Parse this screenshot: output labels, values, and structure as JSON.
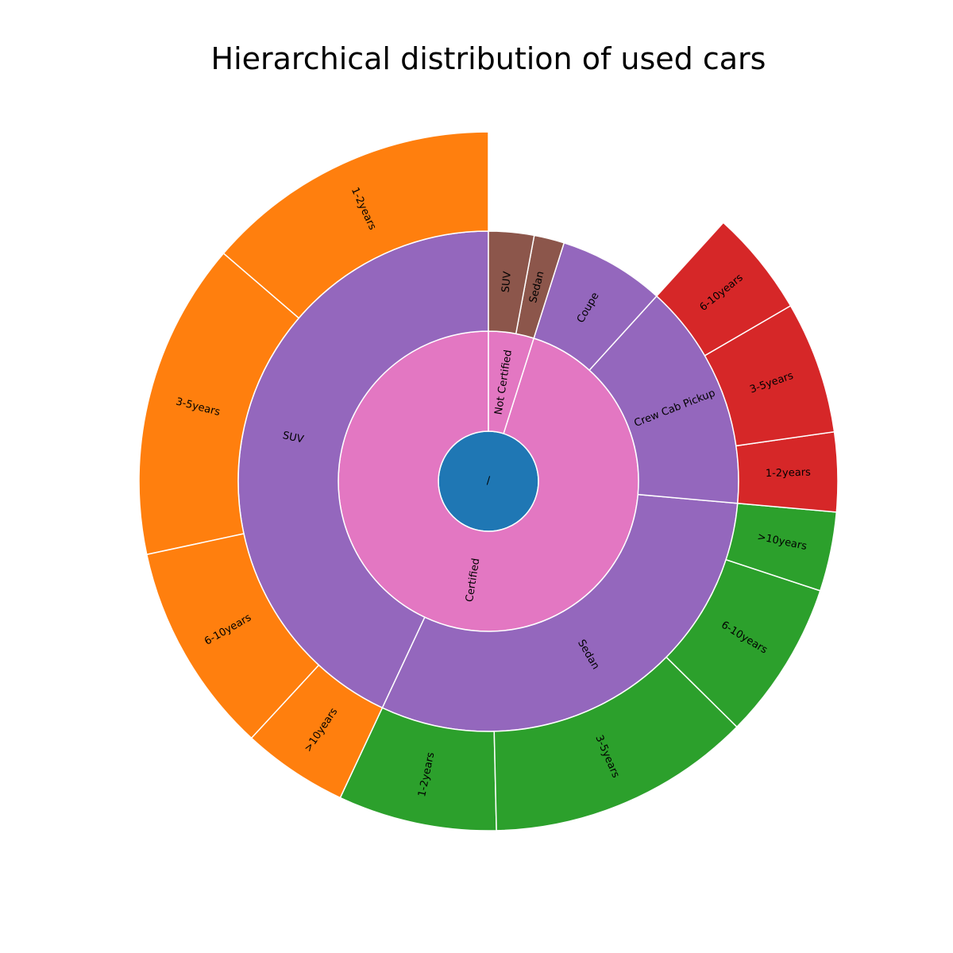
{
  "chart_data": {
    "type": "sunburst",
    "title": "Hierarchical distribution of used cars",
    "root": {
      "label": "/",
      "children": [
        {
          "label": "Certified",
          "children": [
            {
              "label": "SUV",
              "children": [
                {
                  "label": "1-2years",
                  "value": 56
                },
                {
                  "label": "3-5years",
                  "value": 60
                },
                {
                  "label": "6-10years",
                  "value": 40
                },
                {
                  "label": ">10years",
                  "value": 20
                }
              ]
            },
            {
              "label": "Sedan",
              "children": [
                {
                  "label": "1-2years",
                  "value": 30
                },
                {
                  "label": "3-5years",
                  "value": 50
                },
                {
                  "label": "6-10years",
                  "value": 30
                },
                {
                  "label": ">10years",
                  "value": 15
                }
              ]
            },
            {
              "label": "Crew Cab Pickup",
              "children": [
                {
                  "label": "1-2years",
                  "value": 15
                },
                {
                  "label": "3-5years",
                  "value": 25
                },
                {
                  "label": "6-10years",
                  "value": 20
                }
              ]
            },
            {
              "label": "Coupe",
              "value": 28
            }
          ]
        },
        {
          "label": "Not Certified",
          "children": [
            {
              "label": "Sedan",
              "value": 8
            },
            {
              "label": "SUV",
              "value": 12
            }
          ]
        }
      ]
    },
    "colors": {
      "root": "#1f77b4",
      "level1": "#e377c2",
      "level2_certified": "#9467bd",
      "level2_not_certified": "#8c564b",
      "level3_suv": "#ff7f0e",
      "level3_sedan": "#2ca02c",
      "level3_crew_cab_pickup": "#d62728"
    }
  }
}
